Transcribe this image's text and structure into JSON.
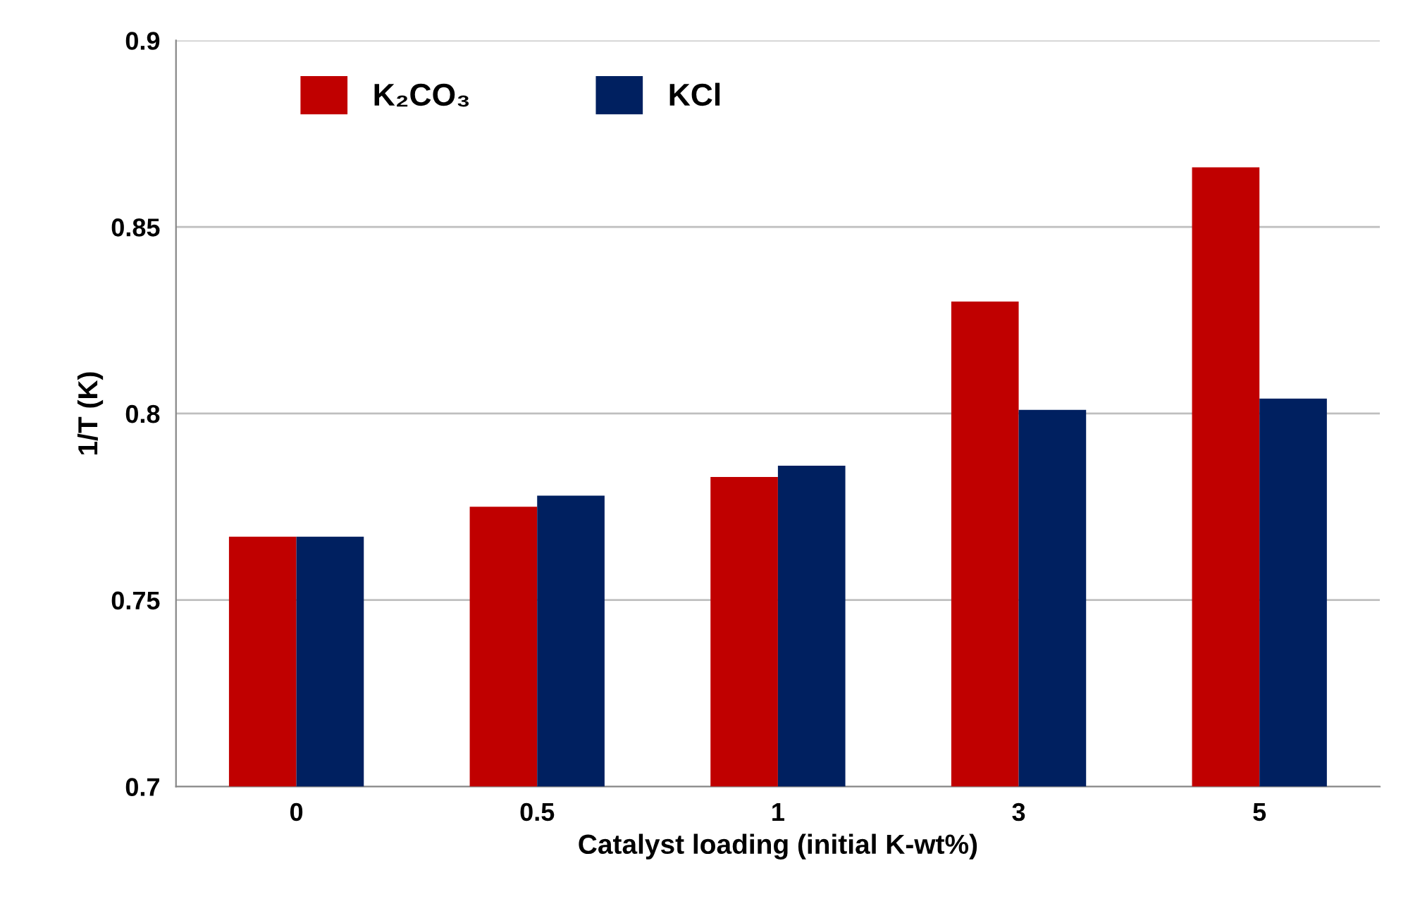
{
  "chart_data": {
    "type": "bar",
    "xlabel": "Catalyst loading (initial K-wt%)",
    "ylabel": "1/T (K)",
    "categories": [
      "0",
      "0.5",
      "1",
      "3",
      "5"
    ],
    "series": [
      {
        "name": "K₂CO₃",
        "color": "#c00000",
        "values": [
          0.767,
          0.775,
          0.783,
          0.83,
          0.866
        ]
      },
      {
        "name": "KCl",
        "color": "#002060",
        "values": [
          0.767,
          0.778,
          0.786,
          0.801,
          0.804
        ]
      }
    ],
    "ylim": [
      0.7,
      0.9
    ],
    "yticks": [
      0.7,
      0.75,
      0.8,
      0.85,
      0.9
    ],
    "grid": "y",
    "legend": "top left"
  }
}
